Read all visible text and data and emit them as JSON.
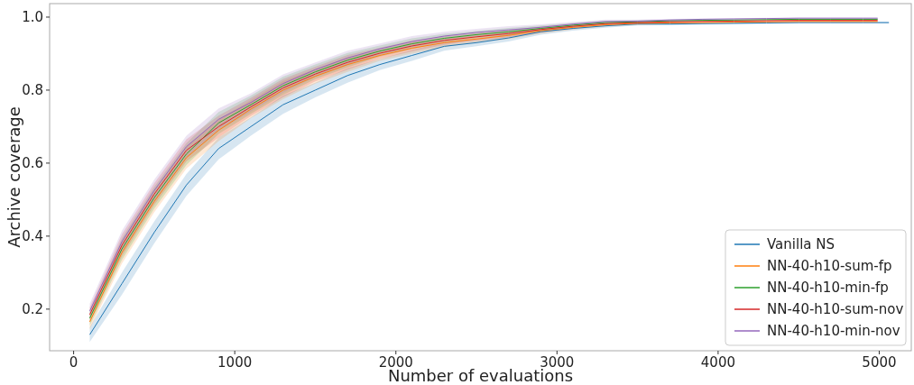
{
  "chart_data": {
    "type": "line",
    "xlabel": "Number of evaluations",
    "ylabel": "Archive coverage",
    "xlim": [
      -149,
      5199
    ],
    "ylim": [
      0.086,
      1.037
    ],
    "xticks": [
      0,
      1000,
      2000,
      3000,
      4000,
      5000
    ],
    "yticks": [
      {
        "value": 0.2,
        "label": "0.2"
      },
      {
        "value": 0.4,
        "label": "0.4"
      },
      {
        "value": 0.6,
        "label": "0.6"
      },
      {
        "value": 0.8,
        "label": "0.8"
      },
      {
        "value": 1.0,
        "label": "1.0"
      }
    ],
    "grid": false,
    "legend": "bottom right",
    "series": [
      {
        "name": "Vanilla NS",
        "color": "#1f77b4",
        "x": [
          100,
          300,
          500,
          700,
          900,
          1100,
          1300,
          1500,
          1700,
          1900,
          2100,
          2300,
          2500,
          2700,
          2900,
          3100,
          3300,
          3500,
          3700,
          3900,
          4100,
          4300,
          4500,
          4700,
          4900,
          5060
        ],
        "values": [
          0.13,
          0.27,
          0.41,
          0.54,
          0.64,
          0.7,
          0.76,
          0.8,
          0.84,
          0.87,
          0.895,
          0.92,
          0.93,
          0.943,
          0.96,
          0.969,
          0.976,
          0.981,
          0.981,
          0.982,
          0.983,
          0.984,
          0.985,
          0.985,
          0.985,
          0.985
        ],
        "lower": [
          0.11,
          0.24,
          0.38,
          0.51,
          0.61,
          0.675,
          0.735,
          0.78,
          0.82,
          0.855,
          0.88,
          0.908,
          0.92,
          0.933,
          0.952,
          0.963,
          0.971,
          0.977,
          0.978,
          0.98,
          0.981,
          0.982,
          0.983,
          0.983,
          0.983,
          0.983
        ],
        "upper": [
          0.15,
          0.3,
          0.44,
          0.57,
          0.67,
          0.725,
          0.785,
          0.82,
          0.86,
          0.885,
          0.91,
          0.932,
          0.94,
          0.953,
          0.968,
          0.975,
          0.981,
          0.985,
          0.984,
          0.984,
          0.985,
          0.986,
          0.987,
          0.987,
          0.987,
          0.987
        ]
      },
      {
        "name": "NN-40-h10-sum-fp",
        "color": "#ff7f0e",
        "x": [
          100,
          300,
          500,
          700,
          900,
          1100,
          1300,
          1500,
          1700,
          1900,
          2100,
          2300,
          2500,
          2700,
          2900,
          3100,
          3300,
          3500,
          3700,
          3900,
          4100,
          4300,
          4500,
          4700,
          4900,
          4990
        ],
        "values": [
          0.165,
          0.355,
          0.495,
          0.615,
          0.69,
          0.748,
          0.8,
          0.838,
          0.87,
          0.895,
          0.915,
          0.93,
          0.94,
          0.95,
          0.963,
          0.972,
          0.979,
          0.983,
          0.984,
          0.985,
          0.986,
          0.987,
          0.988,
          0.988,
          0.988,
          0.988
        ],
        "lower": [
          0.145,
          0.325,
          0.465,
          0.585,
          0.66,
          0.723,
          0.775,
          0.818,
          0.85,
          0.88,
          0.9,
          0.918,
          0.93,
          0.94,
          0.955,
          0.966,
          0.974,
          0.979,
          0.981,
          0.983,
          0.984,
          0.985,
          0.986,
          0.986,
          0.986,
          0.986
        ],
        "upper": [
          0.185,
          0.385,
          0.525,
          0.645,
          0.72,
          0.773,
          0.825,
          0.858,
          0.89,
          0.91,
          0.93,
          0.942,
          0.95,
          0.96,
          0.971,
          0.978,
          0.984,
          0.987,
          0.987,
          0.987,
          0.988,
          0.989,
          0.99,
          0.99,
          0.99,
          0.99
        ]
      },
      {
        "name": "NN-40-h10-min-fp",
        "color": "#2ca02c",
        "x": [
          100,
          300,
          500,
          700,
          900,
          1100,
          1300,
          1500,
          1700,
          1900,
          2100,
          2300,
          2500,
          2700,
          2900,
          3100,
          3300,
          3500,
          3700,
          3900,
          4100,
          4300,
          4500,
          4700,
          4900,
          4990
        ],
        "values": [
          0.175,
          0.365,
          0.505,
          0.625,
          0.71,
          0.76,
          0.812,
          0.85,
          0.882,
          0.907,
          0.927,
          0.942,
          0.952,
          0.96,
          0.969,
          0.978,
          0.985,
          0.987,
          0.99,
          0.991,
          0.992,
          0.993,
          0.994,
          0.994,
          0.994,
          0.994
        ],
        "lower": [
          0.155,
          0.335,
          0.475,
          0.595,
          0.68,
          0.735,
          0.787,
          0.83,
          0.862,
          0.892,
          0.912,
          0.93,
          0.942,
          0.95,
          0.961,
          0.972,
          0.98,
          0.983,
          0.987,
          0.989,
          0.99,
          0.991,
          0.992,
          0.992,
          0.992,
          0.992
        ],
        "upper": [
          0.195,
          0.395,
          0.535,
          0.655,
          0.74,
          0.785,
          0.837,
          0.87,
          0.902,
          0.922,
          0.942,
          0.954,
          0.962,
          0.97,
          0.977,
          0.984,
          0.99,
          0.991,
          0.993,
          0.993,
          0.994,
          0.995,
          0.996,
          0.996,
          0.996,
          0.996
        ]
      },
      {
        "name": "NN-40-h10-sum-nov",
        "color": "#d62728",
        "x": [
          100,
          300,
          500,
          700,
          900,
          1100,
          1300,
          1500,
          1700,
          1900,
          2100,
          2300,
          2500,
          2700,
          2900,
          3100,
          3300,
          3500,
          3700,
          3900,
          4100,
          4300,
          4500,
          4700,
          4900,
          4990
        ],
        "values": [
          0.185,
          0.375,
          0.515,
          0.635,
          0.7,
          0.754,
          0.806,
          0.844,
          0.876,
          0.901,
          0.921,
          0.936,
          0.946,
          0.955,
          0.966,
          0.975,
          0.982,
          0.985,
          0.987,
          0.988,
          0.989,
          0.99,
          0.991,
          0.991,
          0.991,
          0.991
        ],
        "lower": [
          0.165,
          0.345,
          0.485,
          0.605,
          0.67,
          0.729,
          0.781,
          0.824,
          0.856,
          0.886,
          0.906,
          0.924,
          0.936,
          0.945,
          0.958,
          0.969,
          0.977,
          0.981,
          0.984,
          0.986,
          0.987,
          0.988,
          0.989,
          0.989,
          0.989,
          0.989
        ],
        "upper": [
          0.205,
          0.405,
          0.545,
          0.665,
          0.73,
          0.779,
          0.831,
          0.864,
          0.896,
          0.916,
          0.936,
          0.948,
          0.956,
          0.965,
          0.974,
          0.981,
          0.987,
          0.989,
          0.99,
          0.99,
          0.991,
          0.992,
          0.993,
          0.993,
          0.993,
          0.993
        ]
      },
      {
        "name": "NN-40-h10-min-nov",
        "color": "#9467bd",
        "x": [
          100,
          300,
          500,
          700,
          900,
          1100,
          1300,
          1500,
          1700,
          1900,
          2100,
          2300,
          2500,
          2700,
          2900,
          3100,
          3300,
          3500,
          3700,
          3900,
          4100,
          4300,
          4500,
          4700,
          4900,
          4990
        ],
        "values": [
          0.195,
          0.385,
          0.525,
          0.645,
          0.72,
          0.766,
          0.818,
          0.856,
          0.888,
          0.913,
          0.933,
          0.948,
          0.958,
          0.965,
          0.972,
          0.981,
          0.988,
          0.989,
          0.992,
          0.994,
          0.995,
          0.996,
          0.997,
          0.997,
          0.997,
          0.997
        ],
        "lower": [
          0.175,
          0.355,
          0.495,
          0.615,
          0.69,
          0.741,
          0.793,
          0.836,
          0.868,
          0.898,
          0.918,
          0.936,
          0.948,
          0.955,
          0.964,
          0.975,
          0.983,
          0.985,
          0.989,
          0.992,
          0.993,
          0.994,
          0.995,
          0.995,
          0.995,
          0.995
        ],
        "upper": [
          0.215,
          0.415,
          0.555,
          0.675,
          0.75,
          0.791,
          0.843,
          0.876,
          0.908,
          0.928,
          0.948,
          0.96,
          0.968,
          0.975,
          0.98,
          0.987,
          0.993,
          0.993,
          0.995,
          0.996,
          0.997,
          0.998,
          0.999,
          0.999,
          0.999,
          0.999
        ]
      }
    ]
  }
}
